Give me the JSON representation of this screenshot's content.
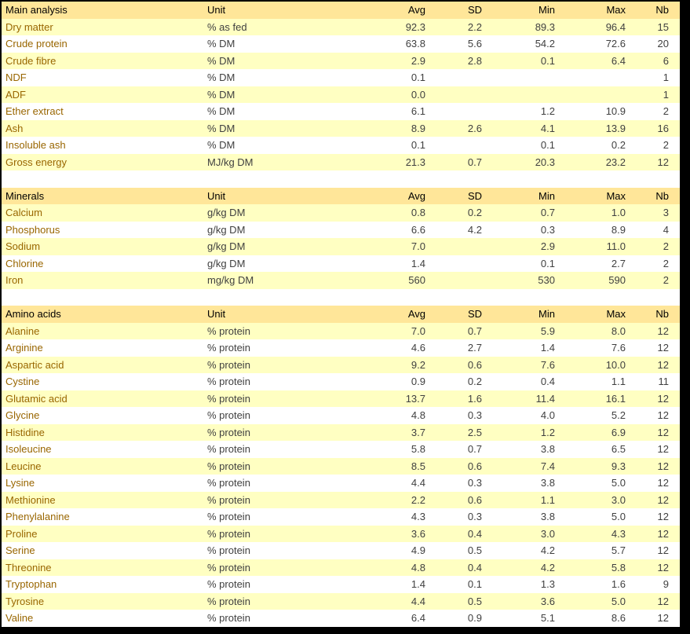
{
  "colors": {
    "frame_bg": "#000000",
    "header_row_bg": "#FFE699",
    "alt_row_bg": "#FFFFC2",
    "row_bg": "#FFFFFF",
    "row_label_color": "#996600",
    "value_color": "#404040",
    "header_text_color": "#000000"
  },
  "columns": {
    "unit": "Unit",
    "avg": "Avg",
    "sd": "SD",
    "min": "Min",
    "max": "Max",
    "nb": "Nb"
  },
  "sections": [
    {
      "title": "Main analysis",
      "rows": [
        {
          "label": "Dry matter",
          "unit": "% as fed",
          "avg": "92.3",
          "sd": "2.2",
          "min": "89.3",
          "max": "96.4",
          "nb": "15"
        },
        {
          "label": "Crude protein",
          "unit": "% DM",
          "avg": "63.8",
          "sd": "5.6",
          "min": "54.2",
          "max": "72.6",
          "nb": "20"
        },
        {
          "label": "Crude fibre",
          "unit": "% DM",
          "avg": "2.9",
          "sd": "2.8",
          "min": "0.1",
          "max": "6.4",
          "nb": "6"
        },
        {
          "label": "NDF",
          "unit": "% DM",
          "avg": "0.1",
          "sd": "",
          "min": "",
          "max": "",
          "nb": "1"
        },
        {
          "label": "ADF",
          "unit": "% DM",
          "avg": "0.0",
          "sd": "",
          "min": "",
          "max": "",
          "nb": "1"
        },
        {
          "label": "Ether extract",
          "unit": "% DM",
          "avg": "6.1",
          "sd": "",
          "min": "1.2",
          "max": "10.9",
          "nb": "2"
        },
        {
          "label": "Ash",
          "unit": "% DM",
          "avg": "8.9",
          "sd": "2.6",
          "min": "4.1",
          "max": "13.9",
          "nb": "16"
        },
        {
          "label": "Insoluble ash",
          "unit": "% DM",
          "avg": "0.1",
          "sd": "",
          "min": "0.1",
          "max": "0.2",
          "nb": "2"
        },
        {
          "label": "Gross energy",
          "unit": "MJ/kg DM",
          "avg": "21.3",
          "sd": "0.7",
          "min": "20.3",
          "max": "23.2",
          "nb": "12"
        }
      ]
    },
    {
      "title": "Minerals",
      "rows": [
        {
          "label": "Calcium",
          "unit": "g/kg DM",
          "avg": "0.8",
          "sd": "0.2",
          "min": "0.7",
          "max": "1.0",
          "nb": "3"
        },
        {
          "label": "Phosphorus",
          "unit": "g/kg DM",
          "avg": "6.6",
          "sd": "4.2",
          "min": "0.3",
          "max": "8.9",
          "nb": "4"
        },
        {
          "label": "Sodium",
          "unit": "g/kg DM",
          "avg": "7.0",
          "sd": "",
          "min": "2.9",
          "max": "11.0",
          "nb": "2"
        },
        {
          "label": "Chlorine",
          "unit": "g/kg DM",
          "avg": "1.4",
          "sd": "",
          "min": "0.1",
          "max": "2.7",
          "nb": "2"
        },
        {
          "label": "Iron",
          "unit": "mg/kg DM",
          "avg": "560",
          "sd": "",
          "min": "530",
          "max": "590",
          "nb": "2"
        }
      ]
    },
    {
      "title": "Amino acids",
      "rows": [
        {
          "label": "Alanine",
          "unit": "% protein",
          "avg": "7.0",
          "sd": "0.7",
          "min": "5.9",
          "max": "8.0",
          "nb": "12"
        },
        {
          "label": "Arginine",
          "unit": "% protein",
          "avg": "4.6",
          "sd": "2.7",
          "min": "1.4",
          "max": "7.6",
          "nb": "12"
        },
        {
          "label": "Aspartic acid",
          "unit": "% protein",
          "avg": "9.2",
          "sd": "0.6",
          "min": "7.6",
          "max": "10.0",
          "nb": "12"
        },
        {
          "label": "Cystine",
          "unit": "% protein",
          "avg": "0.9",
          "sd": "0.2",
          "min": "0.4",
          "max": "1.1",
          "nb": "11"
        },
        {
          "label": "Glutamic acid",
          "unit": "% protein",
          "avg": "13.7",
          "sd": "1.6",
          "min": "11.4",
          "max": "16.1",
          "nb": "12"
        },
        {
          "label": "Glycine",
          "unit": "% protein",
          "avg": "4.8",
          "sd": "0.3",
          "min": "4.0",
          "max": "5.2",
          "nb": "12"
        },
        {
          "label": "Histidine",
          "unit": "% protein",
          "avg": "3.7",
          "sd": "2.5",
          "min": "1.2",
          "max": "6.9",
          "nb": "12"
        },
        {
          "label": "Isoleucine",
          "unit": "% protein",
          "avg": "5.8",
          "sd": "0.7",
          "min": "3.8",
          "max": "6.5",
          "nb": "12"
        },
        {
          "label": "Leucine",
          "unit": "% protein",
          "avg": "8.5",
          "sd": "0.6",
          "min": "7.4",
          "max": "9.3",
          "nb": "12"
        },
        {
          "label": "Lysine",
          "unit": "% protein",
          "avg": "4.4",
          "sd": "0.3",
          "min": "3.8",
          "max": "5.0",
          "nb": "12"
        },
        {
          "label": "Methionine",
          "unit": "% protein",
          "avg": "2.2",
          "sd": "0.6",
          "min": "1.1",
          "max": "3.0",
          "nb": "12"
        },
        {
          "label": "Phenylalanine",
          "unit": "% protein",
          "avg": "4.3",
          "sd": "0.3",
          "min": "3.8",
          "max": "5.0",
          "nb": "12"
        },
        {
          "label": "Proline",
          "unit": "% protein",
          "avg": "3.6",
          "sd": "0.4",
          "min": "3.0",
          "max": "4.3",
          "nb": "12"
        },
        {
          "label": "Serine",
          "unit": "% protein",
          "avg": "4.9",
          "sd": "0.5",
          "min": "4.2",
          "max": "5.7",
          "nb": "12"
        },
        {
          "label": "Threonine",
          "unit": "% protein",
          "avg": "4.8",
          "sd": "0.4",
          "min": "4.2",
          "max": "5.8",
          "nb": "12"
        },
        {
          "label": "Tryptophan",
          "unit": "% protein",
          "avg": "1.4",
          "sd": "0.1",
          "min": "1.3",
          "max": "1.6",
          "nb": "9"
        },
        {
          "label": "Tyrosine",
          "unit": "% protein",
          "avg": "4.4",
          "sd": "0.5",
          "min": "3.6",
          "max": "5.0",
          "nb": "12"
        },
        {
          "label": "Valine",
          "unit": "% protein",
          "avg": "6.4",
          "sd": "0.9",
          "min": "5.1",
          "max": "8.6",
          "nb": "12"
        }
      ]
    }
  ]
}
